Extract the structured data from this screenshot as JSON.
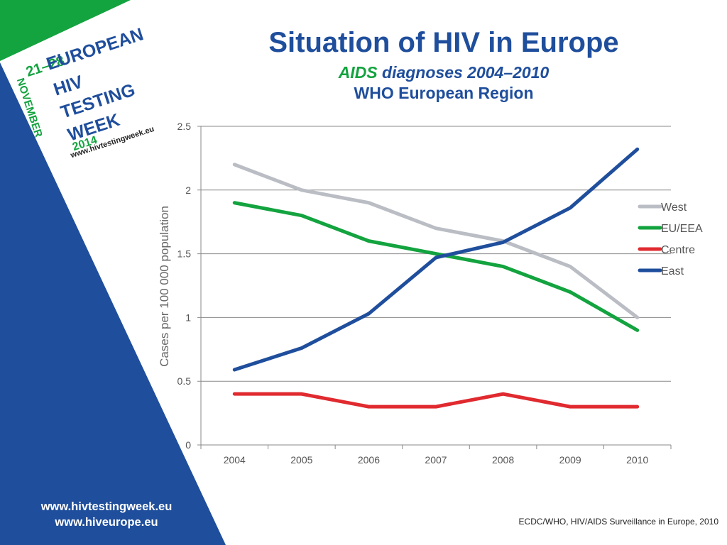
{
  "slide": {
    "title": "Situation of HIV in Europe",
    "subtitle_highlight": "AIDS",
    "subtitle_rest": " diagnoses 2004–2010",
    "region": "WHO European Region",
    "source": "ECDC/WHO, HIV/AIDS Surveillance in Europe, 2010",
    "urls": [
      "www.hivtestingweek.eu",
      "www.hiveurope.eu"
    ],
    "colors": {
      "blue": "#1f4e9c",
      "green": "#13a33f",
      "accent_red": "#e02a2f"
    }
  },
  "logo": {
    "dates": "21–28",
    "month": "NOVEMBER",
    "line1": "EUROPEAN",
    "line2": "HIV",
    "line3": "TESTING",
    "line4": "WEEK",
    "year": "2014",
    "url": "www.hivtestingweek.eu"
  },
  "chart_data": {
    "type": "line",
    "x": [
      "2004",
      "2005",
      "2006",
      "2007",
      "2008",
      "2009",
      "2010"
    ],
    "ylabel": "Cases per 100 000 population",
    "ylim": [
      0,
      2.5
    ],
    "yticks": [
      "0",
      "0.5",
      "1",
      "1.5",
      "2",
      "2.5"
    ],
    "grid": true,
    "legend": "right",
    "series": [
      {
        "name": "West",
        "color": "#babdc4",
        "values": [
          2.2,
          2.0,
          1.9,
          1.7,
          1.6,
          1.4,
          1.0
        ]
      },
      {
        "name": "EU/EEA",
        "color": "#13a33f",
        "values": [
          1.9,
          1.8,
          1.6,
          1.5,
          1.4,
          1.2,
          0.9
        ]
      },
      {
        "name": "Centre",
        "color": "#e02a2f",
        "values": [
          0.4,
          0.4,
          0.3,
          0.3,
          0.4,
          0.3,
          0.3
        ]
      },
      {
        "name": "East",
        "color": "#1f4e9c",
        "values": [
          0.59,
          0.76,
          1.03,
          1.47,
          1.59,
          1.86,
          2.32
        ]
      }
    ]
  }
}
